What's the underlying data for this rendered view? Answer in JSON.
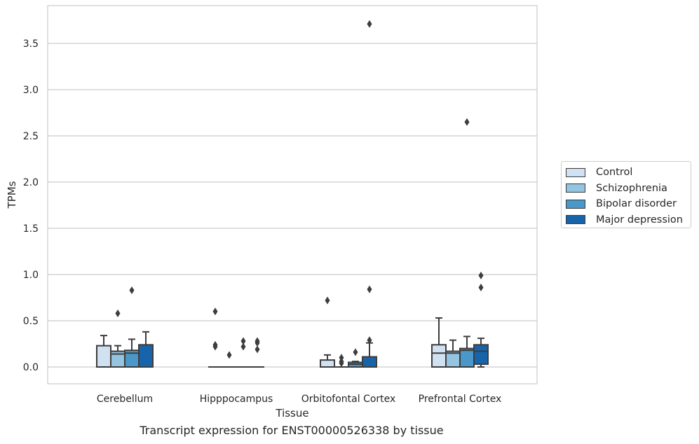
{
  "caption": "Transcript expression for ENST00000526338 by tissue",
  "chart_data": {
    "type": "box",
    "xlabel": "Tissue",
    "ylabel": "TPMs",
    "ylim": [
      -0.18,
      3.9
    ],
    "yticks": [
      "0.0",
      "0.5",
      "1.0",
      "1.5",
      "2.0",
      "2.5",
      "3.0",
      "3.5"
    ],
    "ytick_values": [
      0,
      0.5,
      1.0,
      1.5,
      2.0,
      2.5,
      3.0,
      3.5
    ],
    "grid": "horizontal",
    "legend_position": "right",
    "categories": [
      "Cerebellum",
      "Hipppocampus",
      "Orbitofontal Cortex",
      "Prefrontal Cortex"
    ],
    "series": [
      {
        "name": "Control",
        "color": "#d0e1f2",
        "boxes": [
          {
            "q1": 0.0,
            "median": 0.0,
            "q3": 0.23,
            "whisker_low": 0.0,
            "whisker_high": 0.34,
            "outliers": []
          },
          {
            "q1": 0.0,
            "median": 0.0,
            "q3": 0.0,
            "whisker_low": 0.0,
            "whisker_high": 0.0,
            "outliers": [
              0.6,
              0.24,
              0.22
            ]
          },
          {
            "q1": 0.0,
            "median": 0.0,
            "q3": 0.075,
            "whisker_low": 0.0,
            "whisker_high": 0.13,
            "outliers": [
              0.72
            ]
          },
          {
            "q1": 0.0,
            "median": 0.15,
            "q3": 0.24,
            "whisker_low": 0.0,
            "whisker_high": 0.53,
            "outliers": []
          }
        ]
      },
      {
        "name": "Schizophrenia",
        "color": "#94c4df",
        "boxes": [
          {
            "q1": 0.0,
            "median": 0.14,
            "q3": 0.17,
            "whisker_low": 0.0,
            "whisker_high": 0.23,
            "outliers": [
              0.58
            ]
          },
          {
            "q1": 0.0,
            "median": 0.0,
            "q3": 0.0,
            "whisker_low": 0.0,
            "whisker_high": 0.0,
            "outliers": [
              0.13
            ]
          },
          {
            "q1": 0.0,
            "median": 0.0,
            "q3": 0.0,
            "whisker_low": 0.0,
            "whisker_high": 0.0,
            "outliers": [
              0.1,
              0.06,
              0.04
            ]
          },
          {
            "q1": 0.0,
            "median": 0.15,
            "q3": 0.17,
            "whisker_low": 0.0,
            "whisker_high": 0.29,
            "outliers": []
          }
        ]
      },
      {
        "name": "Bipolar disorder",
        "color": "#4a98c9",
        "boxes": [
          {
            "q1": 0.0,
            "median": 0.15,
            "q3": 0.18,
            "whisker_low": 0.0,
            "whisker_high": 0.3,
            "outliers": [
              0.83
            ]
          },
          {
            "q1": 0.0,
            "median": 0.0,
            "q3": 0.0,
            "whisker_low": 0.0,
            "whisker_high": 0.0,
            "outliers": [
              0.28,
              0.22
            ]
          },
          {
            "q1": 0.0,
            "median": 0.03,
            "q3": 0.05,
            "whisker_low": 0.0,
            "whisker_high": 0.06,
            "outliers": [
              0.16
            ]
          },
          {
            "q1": 0.0,
            "median": 0.18,
            "q3": 0.2,
            "whisker_low": 0.0,
            "whisker_high": 0.33,
            "outliers": [
              2.65
            ]
          }
        ]
      },
      {
        "name": "Major depression",
        "color": "#1764ab",
        "boxes": [
          {
            "q1": 0.0,
            "median": 0.0,
            "q3": 0.24,
            "whisker_low": 0.0,
            "whisker_high": 0.38,
            "outliers": []
          },
          {
            "q1": 0.0,
            "median": 0.0,
            "q3": 0.0,
            "whisker_low": 0.0,
            "whisker_high": 0.0,
            "outliers": [
              0.28,
              0.26,
              0.19
            ]
          },
          {
            "q1": 0.0,
            "median": 0.0,
            "q3": 0.11,
            "whisker_low": 0.0,
            "whisker_high": 0.26,
            "outliers": [
              3.71,
              0.84,
              0.29
            ]
          },
          {
            "q1": 0.03,
            "median": 0.17,
            "q3": 0.24,
            "whisker_low": 0.0,
            "whisker_high": 0.31,
            "outliers": [
              0.99,
              0.86
            ]
          }
        ]
      }
    ]
  }
}
